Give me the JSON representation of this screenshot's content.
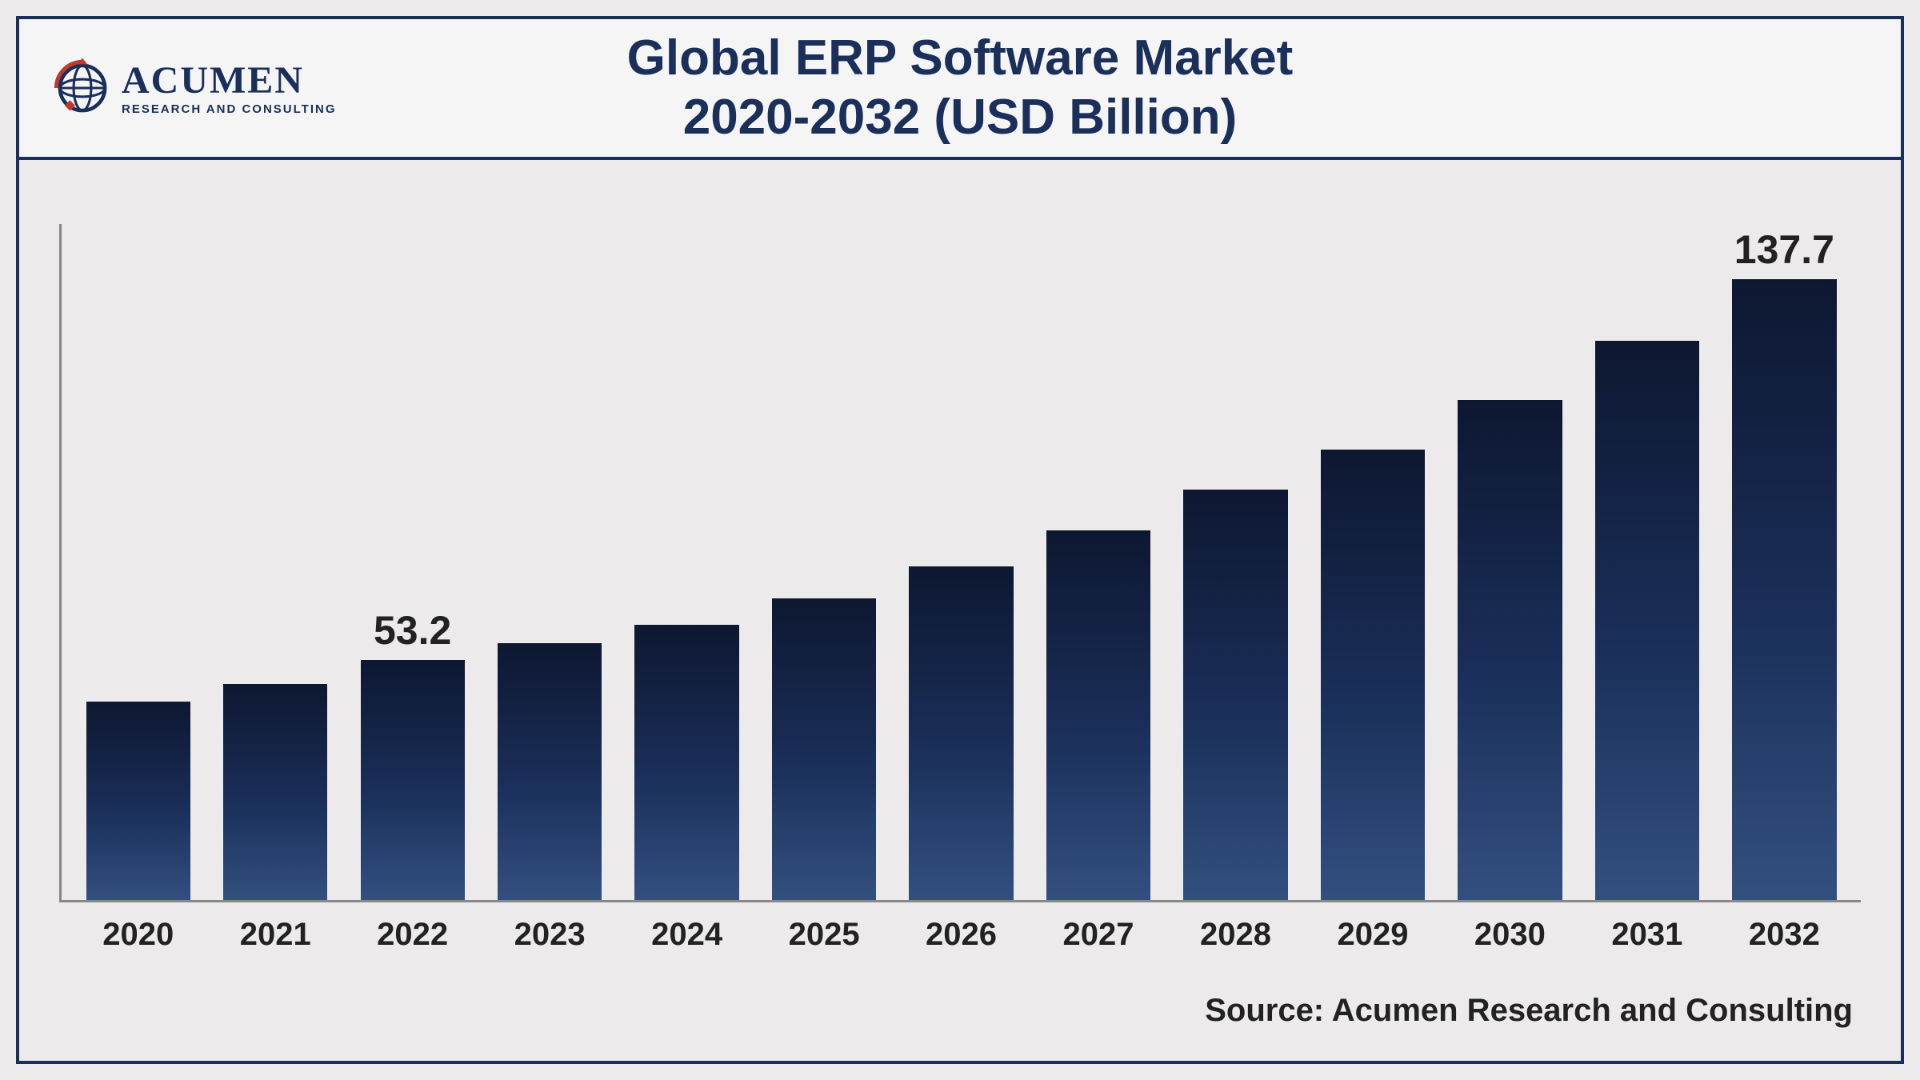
{
  "logo": {
    "name": "ACUMEN",
    "tagline": "RESEARCH AND CONSULTING"
  },
  "title": {
    "line1": "Global ERP Software Market",
    "line2": "2020-2032 (USD Billion)"
  },
  "chart": {
    "type": "bar",
    "categories": [
      "2020",
      "2021",
      "2022",
      "2023",
      "2024",
      "2025",
      "2026",
      "2027",
      "2028",
      "2029",
      "2030",
      "2031",
      "2032"
    ],
    "values": [
      44,
      48,
      53.2,
      57,
      61,
      67,
      74,
      82,
      91,
      100,
      111,
      124,
      137.7
    ],
    "value_labels": [
      "",
      "",
      "53.2",
      "",
      "",
      "",
      "",
      "",
      "",
      "",
      "",
      "",
      "137.7"
    ],
    "y_max": 150,
    "bar_gradient_top": "#0d1730",
    "bar_gradient_mid": "#1a2f5a",
    "bar_gradient_bottom": "#32507f",
    "axis_color": "#888888",
    "background_color": "#eceaea",
    "title_color": "#1a2f5a",
    "border_color": "#1a2f5a",
    "label_fontsize": 40,
    "value_fontsize": 50,
    "title_fontsize": 62,
    "bar_width_ratio": 0.76
  },
  "source": "Source: Acumen Research and Consulting"
}
